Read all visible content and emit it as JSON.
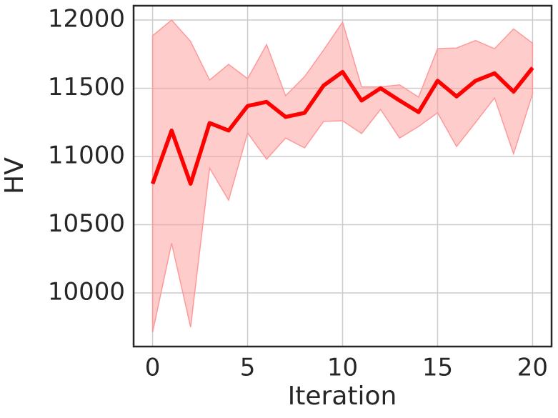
{
  "chart_data": {
    "type": "line",
    "xlabel": "Iteration",
    "ylabel": "HV",
    "x": [
      0,
      1,
      2,
      3,
      4,
      5,
      6,
      7,
      8,
      9,
      10,
      11,
      12,
      13,
      14,
      15,
      16,
      17,
      18,
      19,
      20
    ],
    "series": [
      {
        "color": "#ff0000",
        "band_color": "#ff9999",
        "values": [
          10800,
          11190,
          10800,
          11245,
          11190,
          11370,
          11400,
          11290,
          11320,
          11520,
          11620,
          11410,
          11500,
          11410,
          11325,
          11555,
          11440,
          11555,
          11610,
          11475,
          11650
        ],
        "upper": [
          11885,
          12000,
          11843,
          11560,
          11675,
          11570,
          11820,
          11445,
          11585,
          11780,
          11985,
          11510,
          11510,
          11525,
          11435,
          11790,
          11795,
          11850,
          11790,
          11935,
          11830
        ],
        "lower": [
          9712,
          10365,
          9750,
          10915,
          10680,
          11173,
          10980,
          11135,
          11063,
          11257,
          11262,
          11168,
          11345,
          11135,
          11220,
          11320,
          11073,
          11250,
          11430,
          11020,
          11460
        ]
      }
    ],
    "xlim": [
      -1,
      21
    ],
    "ylim": [
      9607,
      12105
    ],
    "xticks": [
      0,
      5,
      10,
      15,
      20
    ],
    "yticks": [
      10000,
      10500,
      11000,
      11500,
      12000
    ],
    "grid": true
  }
}
